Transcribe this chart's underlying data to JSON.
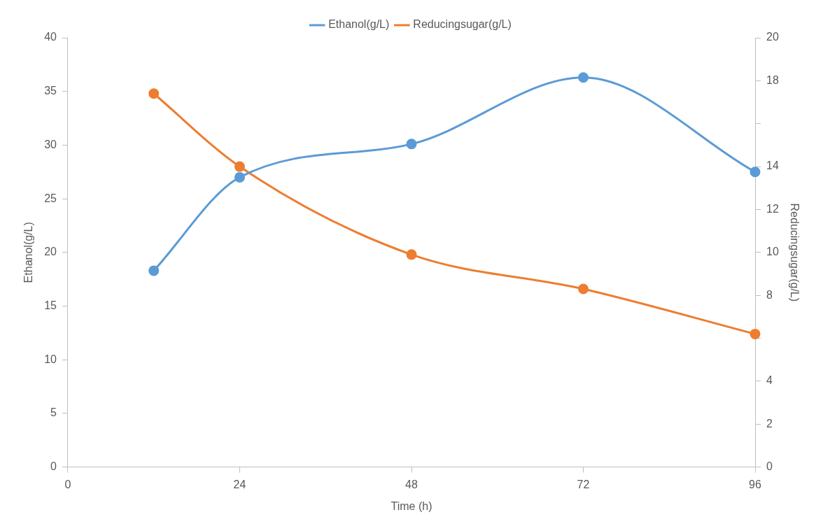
{
  "chart_data": {
    "type": "line",
    "xlabel": "Time (h)",
    "ylabel": "Ethanol(g/L)",
    "y2label": "Reducingsugar(g/L)",
    "x": [
      12,
      24,
      48,
      72,
      96
    ],
    "series": [
      {
        "name": "Ethanol(g/L)",
        "color": "#5b9bd5",
        "values": [
          18.3,
          27.0,
          30.1,
          36.3,
          27.5
        ]
      },
      {
        "name": "Reducingsugar(g/L)",
        "color": "#ed7d31",
        "axis": "y2",
        "values": [
          17.4,
          14.0,
          9.9,
          8.3,
          6.2
        ]
      }
    ],
    "xlim": [
      0,
      96
    ],
    "xticks": [
      0,
      24,
      48,
      72,
      96
    ],
    "ylim": [
      0,
      40
    ],
    "yticks": [
      0,
      5,
      10,
      15,
      20,
      25,
      30,
      35,
      40
    ],
    "y2lim": [
      0,
      20
    ],
    "y2ticks": [
      0,
      2,
      4,
      {
        "value": 6,
        "label": null
      },
      8,
      10,
      12,
      14,
      {
        "value": 16,
        "label": null
      },
      18,
      20
    ],
    "legend": "top",
    "grid": false,
    "marker": "circle",
    "line_style": "solid"
  }
}
